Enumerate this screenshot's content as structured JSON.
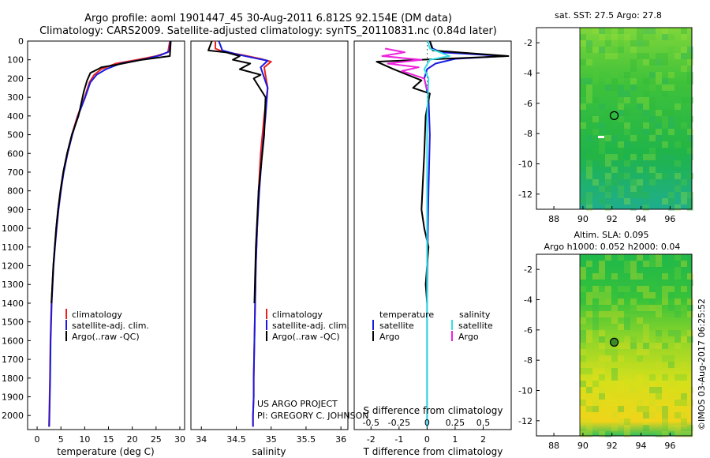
{
  "header": {
    "title_line1": "Argo profile: aoml 1901447_45 30-Aug-2011 6.812S 92.154E (DM data)",
    "title_line2": "Climatology: CARS2009. Satellite-adjusted climatology: synTS_20110831.nc (0.84d later)"
  },
  "colors": {
    "climatology": "#e8231e",
    "satellite": "#1a1adf",
    "argo": "#000000",
    "salinity_satellite": "#33dfe6",
    "salinity_argo": "#ee22dd"
  },
  "chart_data": [
    {
      "type": "line",
      "name": "temperature-profile",
      "xlabel": "temperature (deg C)",
      "ylabel": "",
      "xlim": [
        -2,
        31
      ],
      "ylim": [
        2075,
        0
      ],
      "xticks": [
        0,
        5,
        10,
        15,
        20,
        25,
        30
      ],
      "yticks": [
        0,
        100,
        200,
        300,
        400,
        500,
        600,
        700,
        800,
        900,
        1000,
        1100,
        1200,
        1300,
        1400,
        1500,
        1600,
        1700,
        1800,
        1900,
        2000
      ],
      "legend": [
        "climatology",
        "satellite-adj. clim.",
        "Argo(..raw -QC)"
      ],
      "legend_position": "bottom-center",
      "series": [
        {
          "name": "climatology",
          "color_key": "climatology",
          "x": [
            27.9,
            27.5,
            25,
            21,
            16.5,
            13.5,
            12,
            11,
            10,
            8.5,
            7.3,
            6.3,
            5.5,
            4.9,
            4.4,
            4.0,
            3.7,
            3.4,
            3.2,
            3.0,
            2.8,
            2.7,
            2.55,
            2.5
          ],
          "y": [
            0,
            60,
            80,
            100,
            120,
            150,
            180,
            220,
            300,
            400,
            500,
            600,
            700,
            800,
            900,
            1000,
            1100,
            1200,
            1300,
            1400,
            1600,
            1800,
            2000,
            2060
          ]
        },
        {
          "name": "satellite-adj. clim.",
          "color_key": "satellite",
          "x": [
            28.0,
            27.8,
            26,
            23,
            17.5,
            14.5,
            12.5,
            11.2,
            10.1,
            8.6,
            7.4,
            6.4,
            5.6,
            5.0,
            4.5,
            4.1,
            3.75,
            3.45,
            3.25,
            3.05,
            2.85,
            2.75,
            2.6,
            2.55
          ],
          "y": [
            0,
            55,
            75,
            95,
            120,
            150,
            180,
            220,
            300,
            400,
            500,
            600,
            700,
            800,
            900,
            1000,
            1100,
            1200,
            1300,
            1400,
            1600,
            1800,
            2000,
            2060
          ]
        },
        {
          "name": "Argo(..raw -QC)",
          "color_key": "argo",
          "x": [
            28.1,
            28.0,
            27.9,
            22,
            17,
            13.5,
            12.8,
            11.2,
            10.5,
            9.8,
            8.7,
            7.3,
            6.3,
            5.5,
            4.9,
            4.4,
            4.0,
            3.7,
            3.4,
            3.2,
            3.0
          ],
          "y": [
            0,
            40,
            80,
            100,
            125,
            140,
            150,
            170,
            210,
            270,
            400,
            500,
            600,
            700,
            800,
            900,
            1000,
            1100,
            1200,
            1300,
            1400
          ]
        }
      ]
    },
    {
      "type": "line",
      "name": "salinity-profile",
      "xlabel": "salinity",
      "xlim": [
        33.85,
        36.1
      ],
      "ylim": [
        2075,
        0
      ],
      "xticks": [
        34,
        34.5,
        35,
        35.5,
        36
      ],
      "legend": [
        "climatology",
        "satellite-adj. clim.",
        "Argo(..raw -QC)"
      ],
      "legend_position": "bottom-center",
      "series": [
        {
          "name": "climatology",
          "color_key": "climatology",
          "x": [
            34.2,
            34.2,
            34.3,
            34.6,
            34.85,
            35.0,
            34.9,
            34.95,
            34.9,
            34.85,
            34.82,
            34.8,
            34.78,
            34.77,
            34.76,
            34.75,
            34.75,
            34.74,
            34.74,
            34.74
          ],
          "y": [
            0,
            40,
            55,
            75,
            95,
            110,
            140,
            250,
            400,
            600,
            800,
            1000,
            1200,
            1400,
            1600,
            1800,
            1900,
            2000,
            2040,
            2060
          ]
        },
        {
          "name": "satellite-adj. clim.",
          "color_key": "satellite",
          "x": [
            34.25,
            34.3,
            34.5,
            34.75,
            34.95,
            34.85,
            34.95,
            34.92,
            34.87,
            34.83,
            34.8,
            34.78,
            34.77,
            34.76,
            34.75,
            34.75,
            34.74,
            34.74
          ],
          "y": [
            0,
            50,
            70,
            90,
            105,
            140,
            250,
            400,
            600,
            800,
            1000,
            1200,
            1400,
            1600,
            1800,
            1900,
            2000,
            2060
          ]
        },
        {
          "name": "Argo(..raw -QC)",
          "color_key": "argo",
          "x": [
            34.15,
            34.1,
            34.35,
            34.55,
            34.45,
            34.7,
            34.55,
            34.85,
            34.75,
            34.92,
            34.9,
            34.82,
            34.78,
            34.76
          ],
          "y": [
            0,
            50,
            60,
            80,
            100,
            120,
            150,
            180,
            200,
            300,
            500,
            800,
            1100,
            1400
          ]
        }
      ]
    },
    {
      "type": "line",
      "name": "difference-profile",
      "xlabel": "T difference from climatology",
      "xlabel_secondary": "S difference from climatology",
      "xlim": [
        -2.6,
        3.0
      ],
      "ylim": [
        2075,
        0
      ],
      "xticks": [
        -2,
        -1,
        0,
        1,
        2
      ],
      "xticks_salinity": [
        -0.5,
        -0.25,
        0,
        0.25,
        0.5
      ],
      "legend_temperature_title": "temperature",
      "legend_salinity_title": "salinity",
      "legend_temperature": [
        "satellite",
        "Argo"
      ],
      "legend_salinity": [
        "satellite",
        "Argo"
      ],
      "legend_position": "bottom",
      "series": [
        {
          "name": "temperature satellite",
          "color_key": "satellite",
          "x": [
            0.1,
            0.2,
            0.5,
            2.8,
            1.0,
            0.3,
            0.0,
            -0.1,
            0.05,
            0.1,
            0.05,
            0.02,
            0.0,
            0.0,
            0.0
          ],
          "y": [
            0,
            40,
            60,
            80,
            95,
            120,
            150,
            200,
            300,
            500,
            800,
            1100,
            1400,
            1800,
            2060
          ]
        },
        {
          "name": "temperature Argo",
          "color_key": "argo",
          "x": [
            0.1,
            0.2,
            2.9,
            -1.8,
            -1.2,
            -0.7,
            -0.2,
            -0.5,
            0.1,
            -0.05,
            -0.1,
            -0.2,
            -0.1,
            0.05,
            -0.05,
            0.0
          ],
          "y": [
            0,
            50,
            80,
            110,
            150,
            180,
            210,
            250,
            280,
            400,
            600,
            900,
            1000,
            1100,
            1300,
            1400
          ]
        },
        {
          "name": "salinity satellite",
          "color_key": "salinity_satellite",
          "x": [
            0.02,
            0.1,
            0.45,
            0.8,
            0.1,
            -0.1,
            0.05,
            0.0,
            0.0,
            0.0,
            0.0
          ],
          "y": [
            0,
            40,
            60,
            80,
            100,
            150,
            200,
            400,
            900,
            1500,
            2060
          ]
        },
        {
          "name": "salinity Argo",
          "color_key": "salinity_argo",
          "x": [
            -1.5,
            -0.8,
            -1.6,
            -0.2,
            -1.4,
            -0.3,
            -0.9,
            -0.1,
            0.0
          ],
          "y": [
            40,
            60,
            80,
            100,
            120,
            140,
            160,
            200,
            260
          ]
        }
      ]
    }
  ],
  "maps": {
    "sst": {
      "title": "sat. SST: 27.5 Argo: 27.8",
      "xticks": [
        "88",
        "90",
        "92",
        "94",
        "96"
      ],
      "yticks": [
        "-2",
        "-4",
        "-6",
        "-8",
        "-10",
        "-12"
      ],
      "xlim": [
        86.8,
        97.5
      ],
      "ylim": [
        -13,
        -1
      ],
      "argo_lon": 92.154,
      "argo_lat": -6.812
    },
    "sla": {
      "title_line1": "Altim. SLA: 0.095",
      "title_line2": "Argo h1000: 0.052 h2000: 0.04",
      "xticks": [
        "88",
        "90",
        "92",
        "94",
        "96"
      ],
      "yticks": [
        "-2",
        "-4",
        "-6",
        "-8",
        "-10",
        "-12"
      ],
      "xlim": [
        86.8,
        97.5
      ],
      "ylim": [
        -13,
        -1
      ],
      "argo_lon": 92.154,
      "argo_lat": -6.812
    }
  },
  "credits": {
    "project_line1": "US ARGO PROJECT",
    "project_line2": "PI: GREGORY C. JOHNSON",
    "stamp": "©IMOS 03-Aug-2017 06:25:52"
  }
}
